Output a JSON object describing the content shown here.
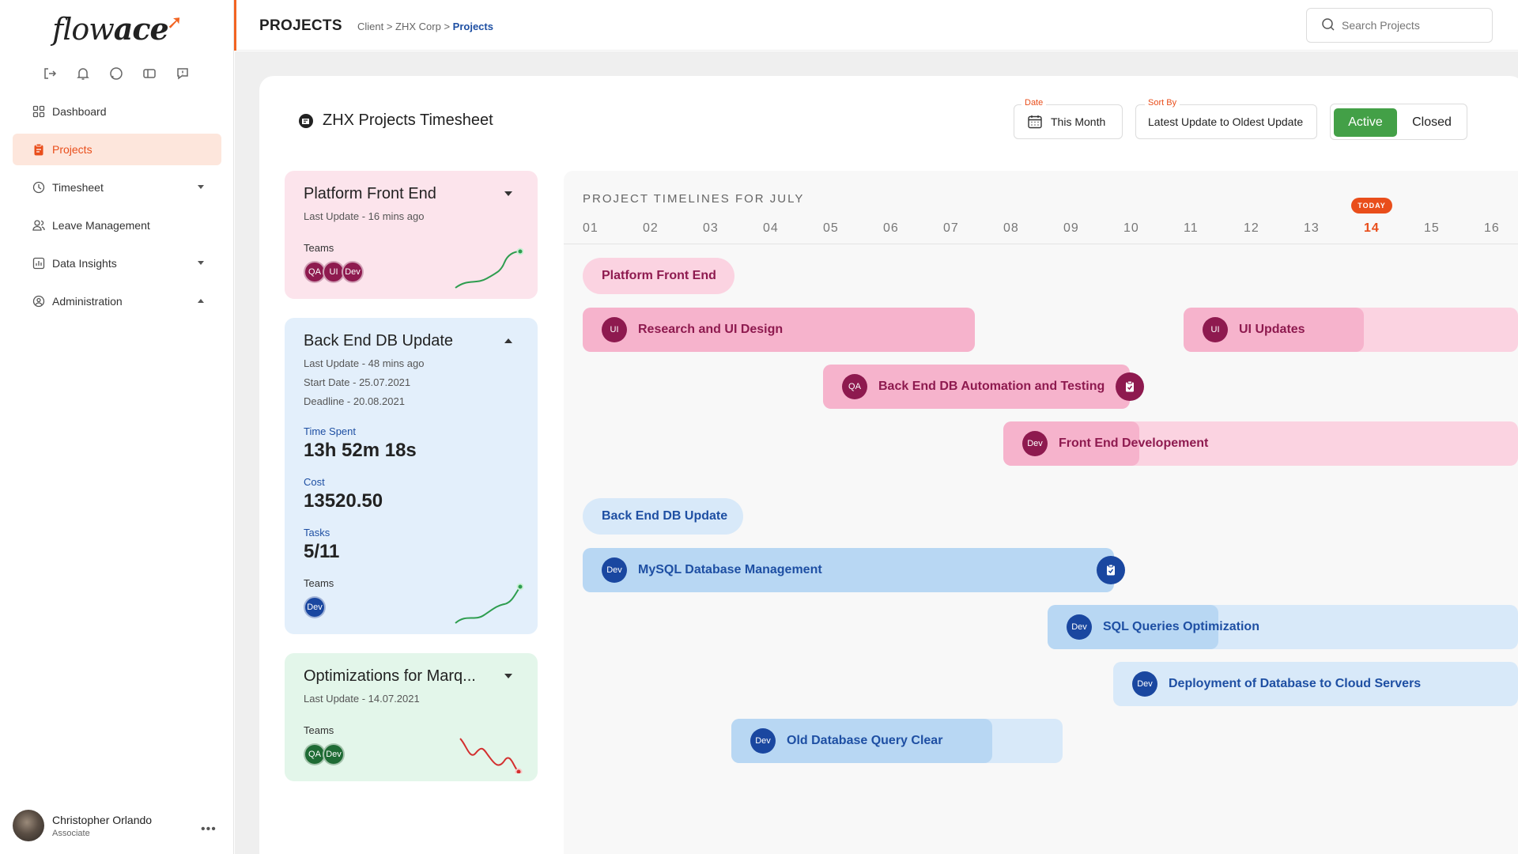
{
  "app": {
    "logo_part1": "flow",
    "logo_part2": "ace",
    "accent_color": "#f26422"
  },
  "sidebar": {
    "quick_icons": [
      "logout-icon",
      "bell-icon",
      "chat-icon",
      "ticket-icon",
      "feedback-icon"
    ],
    "items": [
      {
        "label": "Dashboard",
        "icon": "grid-icon"
      },
      {
        "label": "Projects",
        "icon": "clipboard-icon"
      },
      {
        "label": "Timesheet",
        "icon": "clock-icon"
      },
      {
        "label": "Leave Management",
        "icon": "people-icon"
      },
      {
        "label": "Data Insights",
        "icon": "chart-icon"
      },
      {
        "label": "Administration",
        "icon": "admin-icon"
      }
    ],
    "user": {
      "name": "Christopher Orlando",
      "role": "Associate"
    }
  },
  "header": {
    "title": "PROJECTS",
    "breadcrumb_path": "Client > ZHX Corp > ",
    "breadcrumb_current": "Projects",
    "search_placeholder": "Search Projects"
  },
  "toolbar": {
    "page_title": "ZHX Projects Timesheet",
    "date_label": "Date",
    "date_value": "This Month",
    "sort_label": "Sort By",
    "sort_value": "Latest Update to Oldest Update",
    "toggle_active": "Active",
    "toggle_closed": "Closed"
  },
  "projects": [
    {
      "title": "Platform Front End",
      "last_update": "Last Update - 16 mins ago",
      "teams_label": "Teams",
      "teams": [
        "QA",
        "UI",
        "Dev"
      ]
    },
    {
      "title": "Back End DB Update",
      "last_update": "Last Update - 48 mins ago",
      "start_date": "Start Date - 25.07.2021",
      "deadline": "Deadline - 20.08.2021",
      "time_spent_label": "Time Spent",
      "time_spent": "13h 52m 18s",
      "cost_label": "Cost",
      "cost": "13520.50",
      "tasks_label": "Tasks",
      "tasks": "5/11",
      "teams_label": "Teams",
      "teams": [
        "Dev"
      ]
    },
    {
      "title": "Optimizations for Marq...",
      "last_update": "Last Update - 14.07.2021",
      "teams_label": "Teams",
      "teams": [
        "QA",
        "Dev"
      ]
    }
  ],
  "timeline": {
    "title": "PROJECT TIMELINES FOR JULY",
    "days": [
      "01",
      "02",
      "03",
      "04",
      "05",
      "06",
      "07",
      "08",
      "09",
      "10",
      "11",
      "12",
      "13",
      "14",
      "15",
      "16"
    ],
    "today_label": "TODAY",
    "today_day": "14",
    "groups": [
      {
        "name": "Platform Front End",
        "tasks": [
          {
            "team": "UI",
            "label": "Research and UI Design"
          },
          {
            "team": "UI",
            "label": "UI Updates"
          },
          {
            "team": "QA",
            "label": "Back End DB Automation and Testing"
          },
          {
            "team": "Dev",
            "label": "Front End Developement"
          }
        ]
      },
      {
        "name": "Back End DB Update",
        "tasks": [
          {
            "team": "Dev",
            "label": "MySQL Database Management"
          },
          {
            "team": "Dev",
            "label": "SQL Queries Optimization"
          },
          {
            "team": "Dev",
            "label": "Deployment of Database to Cloud Servers"
          },
          {
            "team": "Dev",
            "label": "Old Database Query Clear"
          }
        ]
      }
    ]
  }
}
